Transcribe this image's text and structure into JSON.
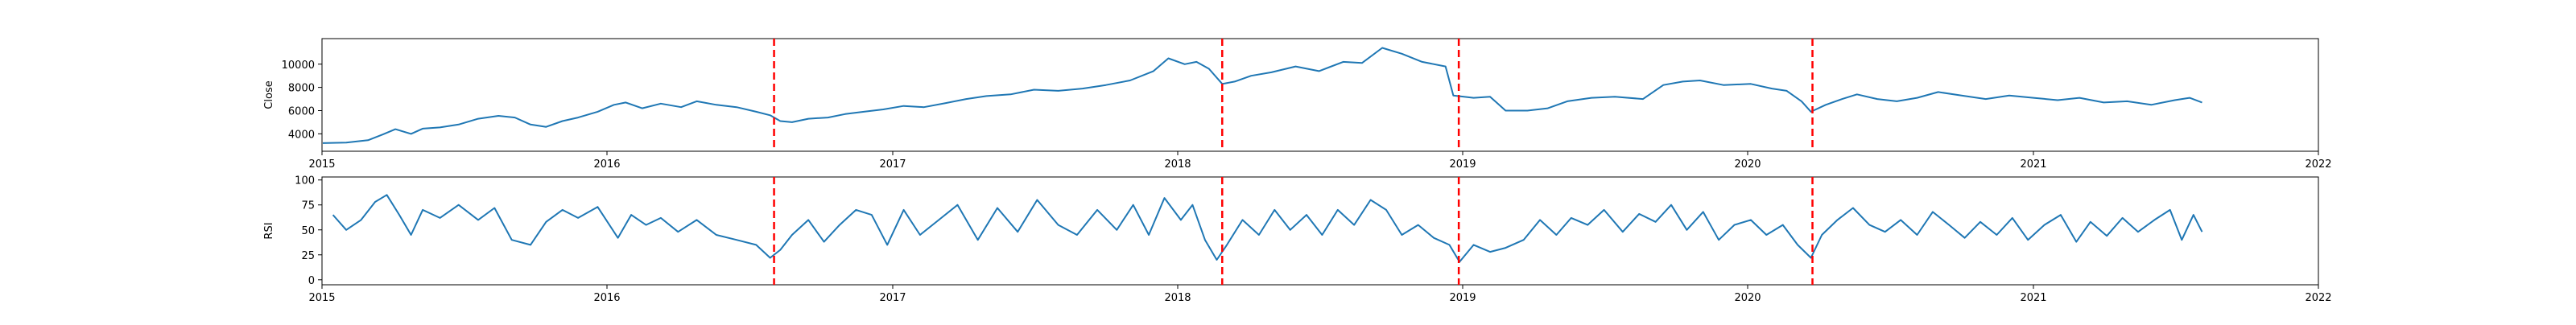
{
  "chart_data": [
    {
      "type": "line",
      "title": "",
      "xlabel": "",
      "ylabel": "Close",
      "xlim": [
        "2015-01-01",
        "2022-01-01"
      ],
      "ylim": [
        2500,
        12200
      ],
      "x_tick_labels": [
        "2015",
        "2016",
        "2017",
        "2018",
        "2019",
        "2020",
        "2021",
        "2022"
      ],
      "y_tick_labels": [
        "4000",
        "6000",
        "8000",
        "10000"
      ],
      "y_ticks": [
        4000,
        6000,
        8000,
        10000
      ],
      "line_color": "#1f77b4",
      "marker_line_color": "#ff0000",
      "vertical_markers": [
        "2016-08-02",
        "2018-02-27",
        "2018-12-27",
        "2020-03-24"
      ],
      "series": [
        {
          "points": [
            [
              "2015-01-02",
              3200
            ],
            [
              "2015-02-01",
              3250
            ],
            [
              "2015-03-01",
              3450
            ],
            [
              "2015-03-20",
              3950
            ],
            [
              "2015-04-05",
              4400
            ],
            [
              "2015-04-25",
              4000
            ],
            [
              "2015-05-10",
              4450
            ],
            [
              "2015-06-01",
              4550
            ],
            [
              "2015-06-25",
              4800
            ],
            [
              "2015-07-20",
              5300
            ],
            [
              "2015-08-15",
              5550
            ],
            [
              "2015-09-05",
              5400
            ],
            [
              "2015-09-25",
              4800
            ],
            [
              "2015-10-15",
              4600
            ],
            [
              "2015-11-05",
              5100
            ],
            [
              "2015-11-25",
              5400
            ],
            [
              "2015-12-20",
              5900
            ],
            [
              "2016-01-10",
              6500
            ],
            [
              "2016-01-25",
              6700
            ],
            [
              "2016-02-15",
              6200
            ],
            [
              "2016-03-10",
              6600
            ],
            [
              "2016-04-05",
              6300
            ],
            [
              "2016-04-25",
              6800
            ],
            [
              "2016-05-20",
              6500
            ],
            [
              "2016-06-15",
              6300
            ],
            [
              "2016-07-10",
              5900
            ],
            [
              "2016-07-28",
              5600
            ],
            [
              "2016-08-10",
              5100
            ],
            [
              "2016-08-25",
              5000
            ],
            [
              "2016-09-15",
              5300
            ],
            [
              "2016-10-10",
              5400
            ],
            [
              "2016-11-01",
              5700
            ],
            [
              "2016-11-25",
              5900
            ],
            [
              "2016-12-20",
              6100
            ],
            [
              "2017-01-15",
              6400
            ],
            [
              "2017-02-10",
              6300
            ],
            [
              "2017-03-10",
              6650
            ],
            [
              "2017-04-05",
              7000
            ],
            [
              "2017-05-01",
              7250
            ],
            [
              "2017-06-01",
              7400
            ],
            [
              "2017-07-01",
              7800
            ],
            [
              "2017-08-01",
              7700
            ],
            [
              "2017-09-01",
              7900
            ],
            [
              "2017-10-01",
              8200
            ],
            [
              "2017-11-01",
              8600
            ],
            [
              "2017-12-01",
              9400
            ],
            [
              "2017-12-20",
              10500
            ],
            [
              "2018-01-10",
              10000
            ],
            [
              "2018-01-25",
              10200
            ],
            [
              "2018-02-10",
              9600
            ],
            [
              "2018-02-27",
              8300
            ],
            [
              "2018-03-15",
              8500
            ],
            [
              "2018-04-05",
              9000
            ],
            [
              "2018-05-01",
              9300
            ],
            [
              "2018-06-01",
              9800
            ],
            [
              "2018-07-01",
              9400
            ],
            [
              "2018-08-01",
              10200
            ],
            [
              "2018-08-25",
              10100
            ],
            [
              "2018-09-20",
              11400
            ],
            [
              "2018-10-15",
              10900
            ],
            [
              "2018-11-10",
              10200
            ],
            [
              "2018-12-10",
              9800
            ],
            [
              "2018-12-20",
              7300
            ],
            [
              "2019-01-15",
              7100
            ],
            [
              "2019-02-05",
              7200
            ],
            [
              "2019-02-25",
              6000
            ],
            [
              "2019-03-25",
              6000
            ],
            [
              "2019-04-20",
              6200
            ],
            [
              "2019-05-15",
              6800
            ],
            [
              "2019-06-15",
              7100
            ],
            [
              "2019-07-15",
              7200
            ],
            [
              "2019-08-20",
              7000
            ],
            [
              "2019-09-15",
              8200
            ],
            [
              "2019-10-10",
              8500
            ],
            [
              "2019-11-01",
              8600
            ],
            [
              "2019-12-01",
              8200
            ],
            [
              "2020-01-05",
              8300
            ],
            [
              "2020-02-01",
              7900
            ],
            [
              "2020-02-20",
              7700
            ],
            [
              "2020-03-10",
              6800
            ],
            [
              "2020-03-22",
              5900
            ],
            [
              "2020-04-10",
              6500
            ],
            [
              "2020-05-01",
              7000
            ],
            [
              "2020-05-20",
              7400
            ],
            [
              "2020-06-15",
              7000
            ],
            [
              "2020-07-10",
              6800
            ],
            [
              "2020-08-05",
              7100
            ],
            [
              "2020-09-01",
              7600
            ],
            [
              "2020-10-01",
              7300
            ],
            [
              "2020-11-01",
              7000
            ],
            [
              "2020-12-01",
              7300
            ],
            [
              "2021-01-01",
              7100
            ],
            [
              "2021-02-01",
              6900
            ],
            [
              "2021-03-01",
              7100
            ],
            [
              "2021-04-01",
              6700
            ],
            [
              "2021-05-01",
              6800
            ],
            [
              "2021-06-01",
              6500
            ],
            [
              "2021-07-01",
              6900
            ],
            [
              "2021-07-20",
              7100
            ],
            [
              "2021-08-05",
              6700
            ]
          ]
        }
      ]
    },
    {
      "type": "line",
      "title": "",
      "xlabel": "",
      "ylabel": "RSI",
      "xlim": [
        "2015-01-01",
        "2022-01-01"
      ],
      "ylim": [
        -5,
        103
      ],
      "x_tick_labels": [
        "2015",
        "2016",
        "2017",
        "2018",
        "2019",
        "2020",
        "2021",
        "2022"
      ],
      "y_tick_labels": [
        "0",
        "25",
        "50",
        "75",
        "100"
      ],
      "y_ticks": [
        0,
        25,
        50,
        75,
        100
      ],
      "line_color": "#1f77b4",
      "marker_line_color": "#ff0000",
      "vertical_markers": [
        "2016-08-02",
        "2018-02-27",
        "2018-12-27",
        "2020-03-24"
      ],
      "series": [
        {
          "points": [
            [
              "2015-01-15",
              65
            ],
            [
              "2015-02-01",
              50
            ],
            [
              "2015-02-20",
              60
            ],
            [
              "2015-03-10",
              78
            ],
            [
              "2015-03-25",
              85
            ],
            [
              "2015-04-10",
              65
            ],
            [
              "2015-04-25",
              45
            ],
            [
              "2015-05-10",
              70
            ],
            [
              "2015-06-01",
              62
            ],
            [
              "2015-06-25",
              75
            ],
            [
              "2015-07-20",
              60
            ],
            [
              "2015-08-10",
              72
            ],
            [
              "2015-09-01",
              40
            ],
            [
              "2015-09-25",
              35
            ],
            [
              "2015-10-15",
              58
            ],
            [
              "2015-11-05",
              70
            ],
            [
              "2015-11-25",
              62
            ],
            [
              "2015-12-20",
              73
            ],
            [
              "2016-01-15",
              42
            ],
            [
              "2016-02-01",
              65
            ],
            [
              "2016-02-20",
              55
            ],
            [
              "2016-03-10",
              62
            ],
            [
              "2016-04-01",
              48
            ],
            [
              "2016-04-25",
              60
            ],
            [
              "2016-05-20",
              45
            ],
            [
              "2016-06-15",
              40
            ],
            [
              "2016-07-10",
              35
            ],
            [
              "2016-07-28",
              22
            ],
            [
              "2016-08-10",
              30
            ],
            [
              "2016-08-25",
              45
            ],
            [
              "2016-09-15",
              60
            ],
            [
              "2016-10-05",
              38
            ],
            [
              "2016-10-25",
              55
            ],
            [
              "2016-11-15",
              70
            ],
            [
              "2016-12-05",
              65
            ],
            [
              "2016-12-25",
              35
            ],
            [
              "2017-01-15",
              70
            ],
            [
              "2017-02-05",
              45
            ],
            [
              "2017-03-01",
              60
            ],
            [
              "2017-03-25",
              75
            ],
            [
              "2017-04-20",
              40
            ],
            [
              "2017-05-15",
              72
            ],
            [
              "2017-06-10",
              48
            ],
            [
              "2017-07-05",
              80
            ],
            [
              "2017-08-01",
              55
            ],
            [
              "2017-08-25",
              45
            ],
            [
              "2017-09-20",
              70
            ],
            [
              "2017-10-15",
              50
            ],
            [
              "2017-11-05",
              75
            ],
            [
              "2017-11-25",
              45
            ],
            [
              "2017-12-15",
              82
            ],
            [
              "2018-01-05",
              60
            ],
            [
              "2018-01-20",
              75
            ],
            [
              "2018-02-05",
              40
            ],
            [
              "2018-02-20",
              20
            ],
            [
              "2018-03-05",
              35
            ],
            [
              "2018-03-25",
              60
            ],
            [
              "2018-04-15",
              45
            ],
            [
              "2018-05-05",
              70
            ],
            [
              "2018-05-25",
              50
            ],
            [
              "2018-06-15",
              65
            ],
            [
              "2018-07-05",
              45
            ],
            [
              "2018-07-25",
              70
            ],
            [
              "2018-08-15",
              55
            ],
            [
              "2018-09-05",
              80
            ],
            [
              "2018-09-25",
              70
            ],
            [
              "2018-10-15",
              45
            ],
            [
              "2018-11-05",
              55
            ],
            [
              "2018-11-25",
              42
            ],
            [
              "2018-12-15",
              35
            ],
            [
              "2018-12-28",
              18
            ],
            [
              "2019-01-15",
              35
            ],
            [
              "2019-02-05",
              28
            ],
            [
              "2019-02-25",
              32
            ],
            [
              "2019-03-20",
              40
            ],
            [
              "2019-04-10",
              60
            ],
            [
              "2019-05-01",
              45
            ],
            [
              "2019-05-20",
              62
            ],
            [
              "2019-06-10",
              55
            ],
            [
              "2019-07-01",
              70
            ],
            [
              "2019-07-25",
              48
            ],
            [
              "2019-08-15",
              66
            ],
            [
              "2019-09-05",
              58
            ],
            [
              "2019-09-25",
              75
            ],
            [
              "2019-10-15",
              50
            ],
            [
              "2019-11-05",
              68
            ],
            [
              "2019-11-25",
              40
            ],
            [
              "2019-12-15",
              55
            ],
            [
              "2020-01-05",
              60
            ],
            [
              "2020-01-25",
              45
            ],
            [
              "2020-02-15",
              55
            ],
            [
              "2020-03-05",
              35
            ],
            [
              "2020-03-22",
              22
            ],
            [
              "2020-04-05",
              45
            ],
            [
              "2020-04-25",
              60
            ],
            [
              "2020-05-15",
              72
            ],
            [
              "2020-06-05",
              55
            ],
            [
              "2020-06-25",
              48
            ],
            [
              "2020-07-15",
              60
            ],
            [
              "2020-08-05",
              45
            ],
            [
              "2020-08-25",
              68
            ],
            [
              "2020-09-15",
              55
            ],
            [
              "2020-10-05",
              42
            ],
            [
              "2020-10-25",
              58
            ],
            [
              "2020-11-15",
              45
            ],
            [
              "2020-12-05",
              62
            ],
            [
              "2020-12-25",
              40
            ],
            [
              "2021-01-15",
              55
            ],
            [
              "2021-02-05",
              65
            ],
            [
              "2021-02-25",
              38
            ],
            [
              "2021-03-15",
              58
            ],
            [
              "2021-04-05",
              44
            ],
            [
              "2021-04-25",
              62
            ],
            [
              "2021-05-15",
              48
            ],
            [
              "2021-06-05",
              60
            ],
            [
              "2021-06-25",
              70
            ],
            [
              "2021-07-10",
              40
            ],
            [
              "2021-07-25",
              65
            ],
            [
              "2021-08-05",
              48
            ]
          ]
        }
      ]
    }
  ]
}
